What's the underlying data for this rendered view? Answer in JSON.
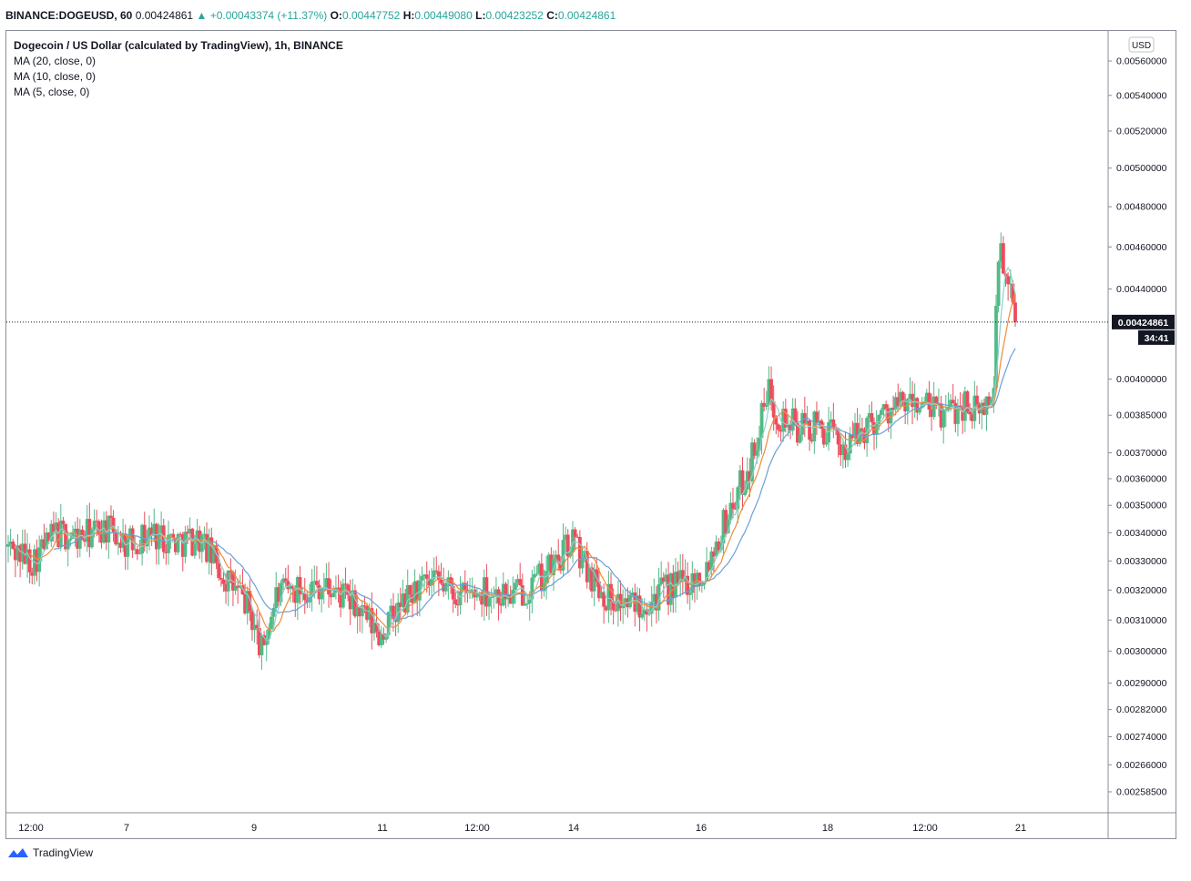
{
  "header": {
    "symbol": "BINANCE:DOGEUSD, 60",
    "price": "0.00424861",
    "change_arrow": "▲",
    "change": "+0.00043374 (+11.37%)",
    "o_label": "O:",
    "o": "0.00447752",
    "h_label": "H:",
    "h": "0.00449080",
    "l_label": "L:",
    "l": "0.00423252",
    "c_label": "C:",
    "c": "0.00424861"
  },
  "legend": {
    "title": "Dogecoin / US Dollar (calculated by TradingView), 1h, BINANCE",
    "ma1": "MA (20, close, 0)",
    "ma2": "MA (10, close, 0)",
    "ma3": "MA (5, close, 0)"
  },
  "axis": {
    "currency": "USD",
    "last_price": "0.00424861",
    "countdown": "34:41"
  },
  "branding": {
    "name": "TradingView"
  },
  "colors": {
    "up": "#53b987",
    "down": "#eb4d5c",
    "ma20": "#6aa1d8",
    "ma10": "#f08c3a",
    "ma5": "#8fd0c7"
  },
  "chart_data": {
    "type": "candlestick",
    "scale": "log",
    "y_ticks": [
      0.0056,
      0.0054,
      0.0052,
      0.005,
      0.0048,
      0.0046,
      0.0044,
      0.004,
      0.00385,
      0.0037,
      0.0036,
      0.0035,
      0.0034,
      0.0033,
      0.0032,
      0.0031,
      0.003,
      0.0029,
      0.00282,
      0.00274,
      0.00266,
      0.002585
    ],
    "y_tick_labels": [
      "0.00560000",
      "0.00540000",
      "0.00520000",
      "0.00500000",
      "0.00480000",
      "0.00460000",
      "0.00440000",
      "0.00400000",
      "0.00385000",
      "0.00370000",
      "0.00360000",
      "0.00350000",
      "0.00340000",
      "0.00330000",
      "0.00320000",
      "0.00310000",
      "0.00300000",
      "0.00290000",
      "0.00282000",
      "0.00274000",
      "0.00266000",
      "0.00258500"
    ],
    "x_tick_labels": [
      "12:00",
      "7",
      "9",
      "11",
      "12:00",
      "14",
      "16",
      "18",
      "12:00",
      "21"
    ],
    "last_close": 0.00424861,
    "anchors": [
      [
        0,
        0.00335
      ],
      [
        10,
        0.0033
      ],
      [
        20,
        0.0034
      ],
      [
        30,
        0.00338
      ],
      [
        40,
        0.00342
      ],
      [
        50,
        0.00336
      ],
      [
        60,
        0.0034
      ],
      [
        70,
        0.00337
      ],
      [
        80,
        0.00338
      ],
      [
        90,
        0.00325
      ],
      [
        100,
        0.00315
      ],
      [
        106,
        0.003
      ],
      [
        112,
        0.00318
      ],
      [
        120,
        0.0032
      ],
      [
        130,
        0.00322
      ],
      [
        140,
        0.00318
      ],
      [
        150,
        0.0031
      ],
      [
        155,
        0.00305
      ],
      [
        160,
        0.0031
      ],
      [
        170,
        0.0032
      ],
      [
        180,
        0.00322
      ],
      [
        190,
        0.00318
      ],
      [
        200,
        0.0032
      ],
      [
        210,
        0.00318
      ],
      [
        220,
        0.00322
      ],
      [
        230,
        0.0033
      ],
      [
        236,
        0.00338
      ],
      [
        240,
        0.0033
      ],
      [
        250,
        0.00318
      ],
      [
        260,
        0.00315
      ],
      [
        270,
        0.00318
      ],
      [
        280,
        0.00322
      ],
      [
        290,
        0.00325
      ],
      [
        300,
        0.00345
      ],
      [
        310,
        0.00365
      ],
      [
        318,
        0.00395
      ],
      [
        322,
        0.00385
      ],
      [
        330,
        0.0038
      ],
      [
        340,
        0.0038
      ],
      [
        350,
        0.00372
      ],
      [
        360,
        0.00382
      ],
      [
        370,
        0.00388
      ],
      [
        380,
        0.0039
      ],
      [
        390,
        0.00385
      ],
      [
        400,
        0.0039
      ],
      [
        406,
        0.00385
      ],
      [
        412,
        0.00395
      ],
      [
        414,
        0.0046
      ],
      [
        417,
        0.00445
      ],
      [
        421,
        0.00424861
      ]
    ],
    "ma_periods": [
      20,
      10,
      5
    ]
  }
}
